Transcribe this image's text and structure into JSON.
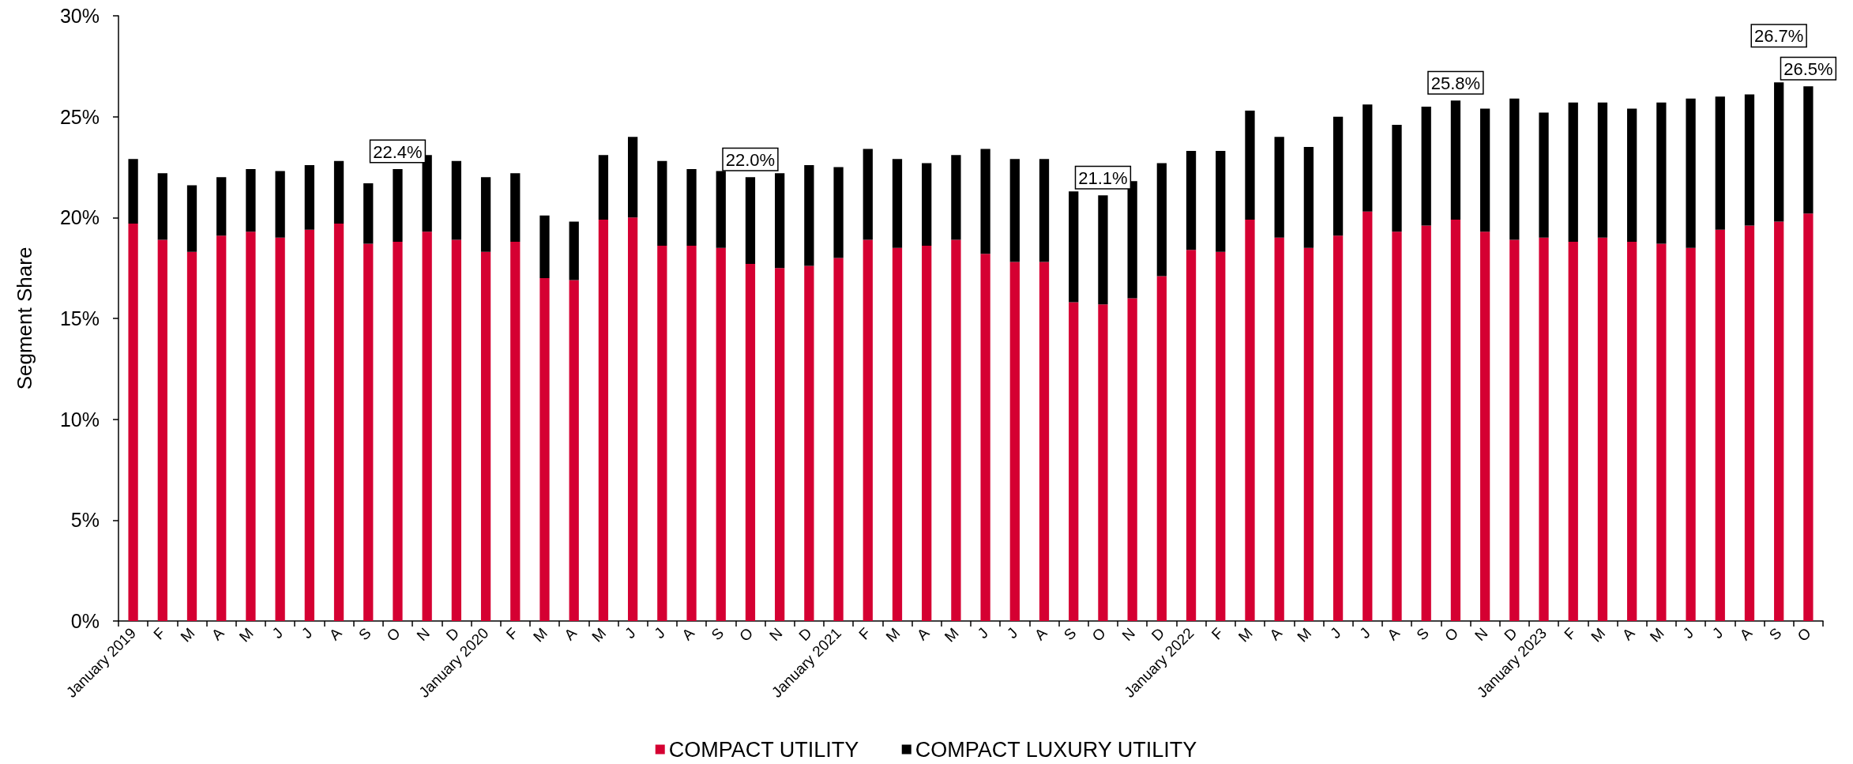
{
  "chart_data": {
    "type": "bar",
    "stacked": true,
    "ylabel": "Segment Share",
    "categories": [
      "January 2019",
      "F",
      "M",
      "A",
      "M",
      "J",
      "J",
      "A",
      "S",
      "O",
      "N",
      "D",
      "January 2020",
      "F",
      "M",
      "A",
      "M",
      "J",
      "J",
      "A",
      "S",
      "O",
      "N",
      "D",
      "January 2021",
      "F",
      "M",
      "A",
      "M",
      "J",
      "J",
      "A",
      "S",
      "O",
      "N",
      "D",
      "January 2022",
      "F",
      "M",
      "A",
      "M",
      "J",
      "J",
      "A",
      "S",
      "O",
      "N",
      "D",
      "January 2023",
      "F",
      "M",
      "A",
      "M",
      "J",
      "J",
      "A",
      "S",
      "O"
    ],
    "series": [
      {
        "name": "COMPACT UTILITY",
        "color": "#d50032",
        "values": [
          19.7,
          18.9,
          18.3,
          19.1,
          19.3,
          19.0,
          19.4,
          19.7,
          18.7,
          18.8,
          19.3,
          18.9,
          18.3,
          18.8,
          17.0,
          16.9,
          19.9,
          20.0,
          18.6,
          18.6,
          18.5,
          17.7,
          17.5,
          17.6,
          18.0,
          18.9,
          18.5,
          18.6,
          18.9,
          18.2,
          17.8,
          17.8,
          15.8,
          15.7,
          16.0,
          17.1,
          18.4,
          18.3,
          19.9,
          19.0,
          18.5,
          19.1,
          20.3,
          19.3,
          19.6,
          19.9,
          19.3,
          18.9,
          19.0,
          18.8,
          19.0,
          18.8,
          18.7,
          18.5,
          19.4,
          19.6,
          19.8,
          20.2
        ]
      },
      {
        "name": "COMPACT LUXURY UTILITY",
        "color": "#000000",
        "values": [
          3.2,
          3.3,
          3.3,
          2.9,
          3.1,
          3.3,
          3.2,
          3.1,
          3.0,
          3.6,
          3.8,
          3.9,
          3.7,
          3.4,
          3.1,
          2.9,
          3.2,
          4.0,
          4.2,
          3.8,
          3.8,
          4.3,
          4.7,
          5.0,
          4.5,
          4.5,
          4.4,
          4.1,
          4.2,
          5.2,
          5.1,
          5.1,
          5.5,
          5.4,
          5.8,
          5.6,
          4.9,
          5.0,
          5.4,
          5.0,
          5.0,
          5.9,
          5.3,
          5.3,
          5.9,
          5.9,
          6.1,
          7.0,
          6.2,
          6.9,
          6.7,
          6.6,
          7.0,
          7.4,
          6.6,
          6.5,
          6.9,
          6.3
        ]
      }
    ],
    "totals": [
      null,
      null,
      null,
      null,
      null,
      null,
      null,
      null,
      null,
      "22.4%",
      null,
      null,
      null,
      null,
      null,
      null,
      null,
      null,
      null,
      null,
      null,
      "22.0%",
      null,
      null,
      null,
      null,
      null,
      null,
      null,
      null,
      null,
      null,
      null,
      "21.1%",
      null,
      null,
      null,
      null,
      null,
      null,
      null,
      null,
      null,
      null,
      null,
      "25.8%",
      null,
      null,
      null,
      null,
      null,
      null,
      null,
      null,
      null,
      null,
      "26.7%",
      "26.5%"
    ],
    "ylim": [
      0,
      30
    ],
    "yticks": [
      {
        "value": 0,
        "label": "0%"
      },
      {
        "value": 5,
        "label": "5%"
      },
      {
        "value": 10,
        "label": "10%"
      },
      {
        "value": 15,
        "label": "15%"
      },
      {
        "value": 20,
        "label": "20%"
      },
      {
        "value": 25,
        "label": "25%"
      },
      {
        "value": 30,
        "label": "30%"
      }
    ],
    "grid": false,
    "legend": "bottom"
  }
}
